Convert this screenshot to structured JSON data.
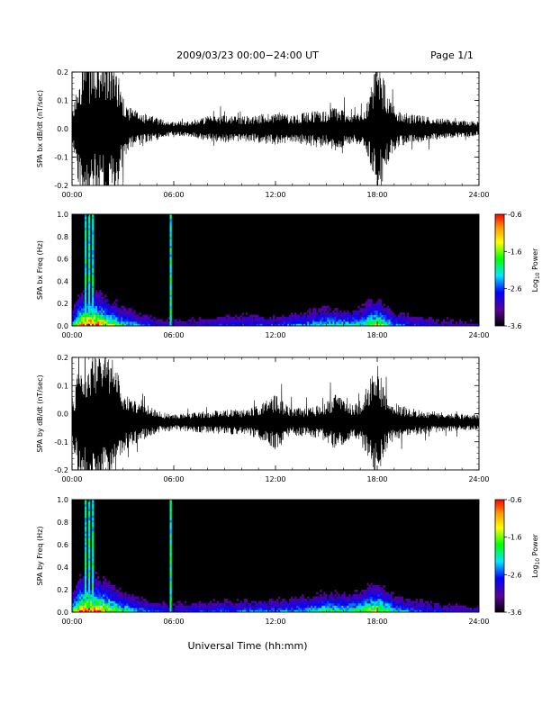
{
  "header": {
    "title": "2009/03/23  00:00−24:00 UT",
    "page": "Page 1/1"
  },
  "footer": {
    "xlabel": "Universal Time (hh:mm)"
  },
  "colorbar": {
    "label_main": "Log",
    "label_sub": "10",
    "label_tail": " Power",
    "ticks": [
      "-0.6",
      "-1.6",
      "-2.6",
      "-3.6"
    ],
    "range": [
      -3.6,
      -0.6
    ],
    "colors": [
      "#000000",
      "#5a0096",
      "#0000ff",
      "#00e6ff",
      "#00ff00",
      "#ffff00",
      "#ff9a00",
      "#ff0000"
    ]
  },
  "chart_data": [
    {
      "type": "line",
      "name": "bx-timeseries",
      "ylabel": "SPA bx dB/dt (nT/sec)",
      "xlim": [
        0,
        24
      ],
      "ylim": [
        -0.2,
        0.2
      ],
      "x_ticks": [
        "00:00",
        "06:00",
        "12:00",
        "18:00",
        "24:00"
      ],
      "y_ticks": [
        "-0.2",
        "-0.1",
        "0.0",
        "0.1",
        "0.2"
      ],
      "y_tick_values": [
        -0.2,
        -0.1,
        0.0,
        0.1,
        0.2
      ],
      "envelope_hours": [
        0,
        0.2,
        0.4,
        0.6,
        0.9,
        1.2,
        1.5,
        1.8,
        2.1,
        2.4,
        2.7,
        3.0,
        3.3,
        3.6,
        4.0,
        4.5,
        5.0,
        5.5,
        6.0,
        7.0,
        8.0,
        9.0,
        10.0,
        11.0,
        12.0,
        13.0,
        14.0,
        14.5,
        15.0,
        15.5,
        16.0,
        16.5,
        17.0,
        17.5,
        17.8,
        18.0,
        18.3,
        18.6,
        19.0,
        19.5,
        20.0,
        21.0,
        22.0,
        23.0,
        24.0
      ],
      "envelope_amp": [
        0.05,
        0.12,
        0.22,
        0.25,
        0.25,
        0.25,
        0.25,
        0.25,
        0.25,
        0.25,
        0.22,
        0.12,
        0.08,
        0.07,
        0.06,
        0.05,
        0.04,
        0.03,
        0.025,
        0.03,
        0.045,
        0.05,
        0.045,
        0.05,
        0.06,
        0.05,
        0.06,
        0.07,
        0.06,
        0.08,
        0.07,
        0.05,
        0.06,
        0.11,
        0.19,
        0.22,
        0.2,
        0.12,
        0.08,
        0.06,
        0.05,
        0.045,
        0.035,
        0.03,
        0.025
      ],
      "baseline": 0.0
    },
    {
      "type": "heatmap",
      "name": "bx-spectrogram",
      "ylabel": "SPA bx Freq (Hz)",
      "xlim": [
        0,
        24
      ],
      "ylim": [
        0,
        1.0
      ],
      "x_ticks": [
        "00:00",
        "06:00",
        "12:00",
        "18:00",
        "24:00"
      ],
      "y_ticks": [
        "0.0",
        "0.2",
        "0.4",
        "0.6",
        "0.8",
        "1.0"
      ],
      "y_tick_values": [
        0.0,
        0.2,
        0.4,
        0.6,
        0.8,
        1.0
      ],
      "bright_columns_hours": [
        0.8,
        1.05,
        1.2,
        5.8
      ],
      "activity_hours": [
        0,
        0.5,
        1,
        1.5,
        2,
        3,
        4,
        5,
        6,
        8,
        10,
        12,
        14,
        15,
        16,
        17,
        17.5,
        18,
        18.5,
        19,
        20,
        21,
        22,
        24
      ],
      "activity_level": [
        0.5,
        0.9,
        1.0,
        0.95,
        0.8,
        0.55,
        0.4,
        0.3,
        0.25,
        0.3,
        0.35,
        0.35,
        0.45,
        0.55,
        0.5,
        0.55,
        0.7,
        0.75,
        0.6,
        0.45,
        0.35,
        0.3,
        0.25,
        0.2
      ]
    },
    {
      "type": "line",
      "name": "by-timeseries",
      "ylabel": "SPA by dB/dt (nT/sec)",
      "xlim": [
        0,
        24
      ],
      "ylim": [
        -0.2,
        0.2
      ],
      "x_ticks": [
        "00:00",
        "06:00",
        "12:00",
        "18:00",
        "24:00"
      ],
      "y_ticks": [
        "-0.2",
        "-0.1",
        "0.0",
        "0.1",
        "0.2"
      ],
      "y_tick_values": [
        -0.2,
        -0.1,
        0.0,
        0.1,
        0.2
      ],
      "envelope_hours": [
        0,
        0.2,
        0.4,
        0.6,
        0.9,
        1.2,
        1.5,
        1.8,
        2.1,
        2.4,
        2.7,
        3.0,
        3.3,
        3.6,
        4.0,
        4.5,
        5.0,
        5.5,
        6.0,
        7.0,
        8.0,
        9.0,
        10.0,
        11.0,
        11.5,
        12.0,
        12.5,
        13.0,
        14.0,
        15.0,
        15.5,
        16.0,
        16.5,
        17.0,
        17.5,
        17.8,
        18.0,
        18.3,
        18.6,
        19.0,
        19.5,
        20.0,
        21.0,
        22.0,
        23.0,
        24.0
      ],
      "envelope_amp": [
        0.06,
        0.13,
        0.22,
        0.25,
        0.25,
        0.25,
        0.25,
        0.25,
        0.24,
        0.22,
        0.18,
        0.12,
        0.09,
        0.08,
        0.07,
        0.06,
        0.04,
        0.035,
        0.03,
        0.035,
        0.04,
        0.045,
        0.045,
        0.06,
        0.08,
        0.1,
        0.07,
        0.05,
        0.05,
        0.07,
        0.1,
        0.09,
        0.06,
        0.08,
        0.14,
        0.2,
        0.22,
        0.14,
        0.09,
        0.07,
        0.06,
        0.05,
        0.04,
        0.035,
        0.03,
        0.03
      ],
      "baseline": -0.03
    },
    {
      "type": "heatmap",
      "name": "by-spectrogram",
      "ylabel": "SPA by Freq (Hz)",
      "xlim": [
        0,
        24
      ],
      "ylim": [
        0,
        1.0
      ],
      "x_ticks": [
        "00:00",
        "06:00",
        "12:00",
        "18:00",
        "24:00"
      ],
      "y_ticks": [
        "0.0",
        "0.2",
        "0.4",
        "0.6",
        "0.8",
        "1.0"
      ],
      "y_tick_values": [
        0.0,
        0.2,
        0.4,
        0.6,
        0.8,
        1.0
      ],
      "bright_columns_hours": [
        0.8,
        1.05,
        1.2,
        5.8
      ],
      "activity_hours": [
        0,
        0.5,
        1,
        1.5,
        2,
        3,
        4,
        5,
        6,
        8,
        10,
        12,
        14,
        15,
        16,
        17,
        17.5,
        18,
        18.5,
        19,
        20,
        21,
        22,
        24
      ],
      "activity_level": [
        0.55,
        0.95,
        1.0,
        0.95,
        0.85,
        0.6,
        0.45,
        0.35,
        0.3,
        0.35,
        0.4,
        0.4,
        0.5,
        0.6,
        0.55,
        0.6,
        0.75,
        0.8,
        0.7,
        0.5,
        0.4,
        0.35,
        0.3,
        0.25
      ]
    }
  ]
}
